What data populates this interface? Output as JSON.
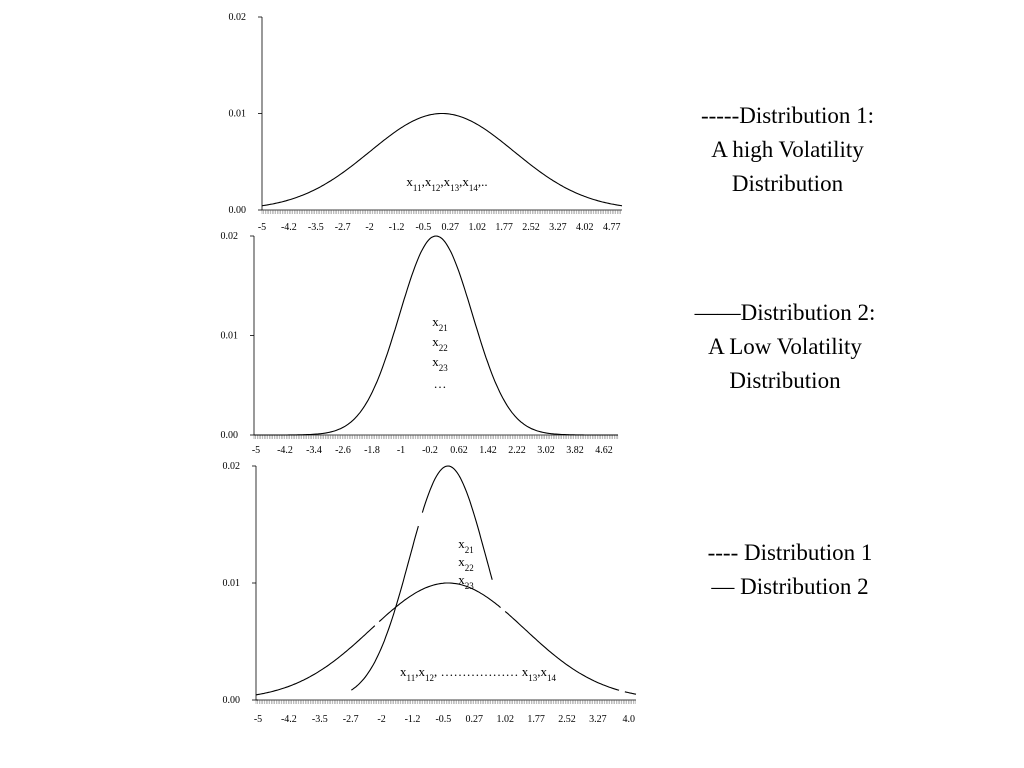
{
  "chart_data": [
    {
      "type": "line",
      "title": "",
      "xlabel": "",
      "ylabel": "",
      "y_ticks": [
        "0.02",
        "0.01",
        "0.00"
      ],
      "ylim": [
        0,
        0.02
      ],
      "xlim": [
        -5,
        5
      ],
      "x_ticks": [
        "-5",
        "-4.2",
        "-3.5",
        "-2.7",
        "-2",
        "-1.2",
        "-0.5",
        "0.27",
        "1.02",
        "1.77",
        "2.52",
        "3.27",
        "4.02",
        "4.77"
      ],
      "annotation": "x11,x12,x13,x14,..",
      "series": [
        {
          "style": "dashed",
          "mean": 0,
          "sd": 2,
          "peak": 0.01
        }
      ]
    },
    {
      "type": "line",
      "title": "",
      "xlabel": "",
      "ylabel": "",
      "y_ticks": [
        "0.02",
        "0.01",
        "0.00"
      ],
      "ylim": [
        0,
        0.02
      ],
      "xlim": [
        -5,
        5
      ],
      "x_ticks": [
        "-5",
        "-4.2",
        "-3.4",
        "-2.6",
        "-1.8",
        "-1",
        "-0.2",
        "0.62",
        "1.42",
        "2.22",
        "3.02",
        "3.82",
        "4.62"
      ],
      "annotation": [
        "x21",
        "x22",
        "x23",
        "…"
      ],
      "series": [
        {
          "style": "solid",
          "mean": 0,
          "sd": 1,
          "peak": 0.02
        }
      ]
    },
    {
      "type": "line",
      "title": "",
      "xlabel": "",
      "ylabel": "",
      "y_ticks": [
        "0.02",
        "0.01",
        "0.00"
      ],
      "ylim": [
        0,
        0.02
      ],
      "xlim": [
        -5,
        4.9
      ],
      "x_ticks": [
        "-5",
        "-4.2",
        "-3.5",
        "-2.7",
        "-2",
        "-1.2",
        "-0.5",
        "0.27",
        "1.02",
        "1.77",
        "2.52",
        "3.27",
        "4.0"
      ],
      "annotation_top": [
        "x21",
        "x22",
        "x23"
      ],
      "annotation_bottom": "x11,x12, ……………… x13,x14",
      "series": [
        {
          "style": "dashed",
          "mean": 0,
          "sd": 2,
          "peak": 0.01
        },
        {
          "style": "solid",
          "mean": 0,
          "sd": 1,
          "peak": 0.02
        }
      ]
    }
  ],
  "captions": {
    "distribution_1": [
      "-----Distribution 1:",
      "A high Volatility",
      "Distribution"
    ],
    "distribution_2": [
      "——Distribution 2:",
      "A Low Volatility",
      "Distribution"
    ],
    "legend": [
      "---- Distribution 1",
      "— Distribution 2"
    ]
  }
}
